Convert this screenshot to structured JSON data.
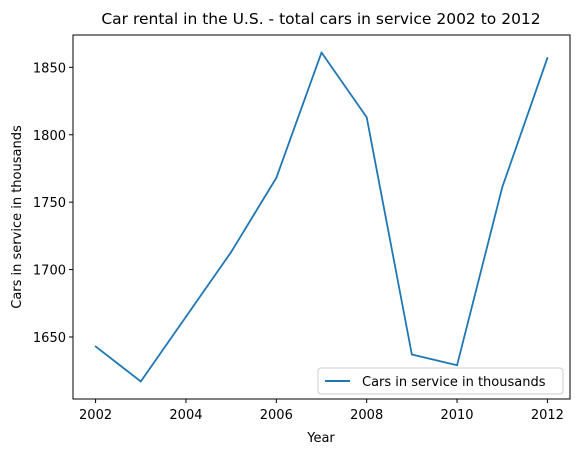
{
  "chart_data": {
    "type": "line",
    "title": "Car rental in the U.S. - total cars in service 2002 to 2012",
    "xlabel": "Year",
    "ylabel": "Cars in service in thousands",
    "x": [
      2002,
      2003,
      2004,
      2005,
      2006,
      2007,
      2008,
      2009,
      2010,
      2011,
      2012
    ],
    "series": [
      {
        "name": "Cars in service in thousands",
        "values": [
          1643,
          1617,
          1665,
          1713,
          1768,
          1861,
          1813,
          1637,
          1629,
          1761,
          1857
        ],
        "color": "#1f77b4"
      }
    ],
    "xlim": [
      2001.5,
      2012.5
    ],
    "ylim": [
      1604,
      1874
    ],
    "xticks": [
      2002,
      2004,
      2006,
      2008,
      2010,
      2012
    ],
    "yticks": [
      1650,
      1700,
      1750,
      1800,
      1850
    ],
    "grid": false,
    "legend_position": "lower-right"
  }
}
